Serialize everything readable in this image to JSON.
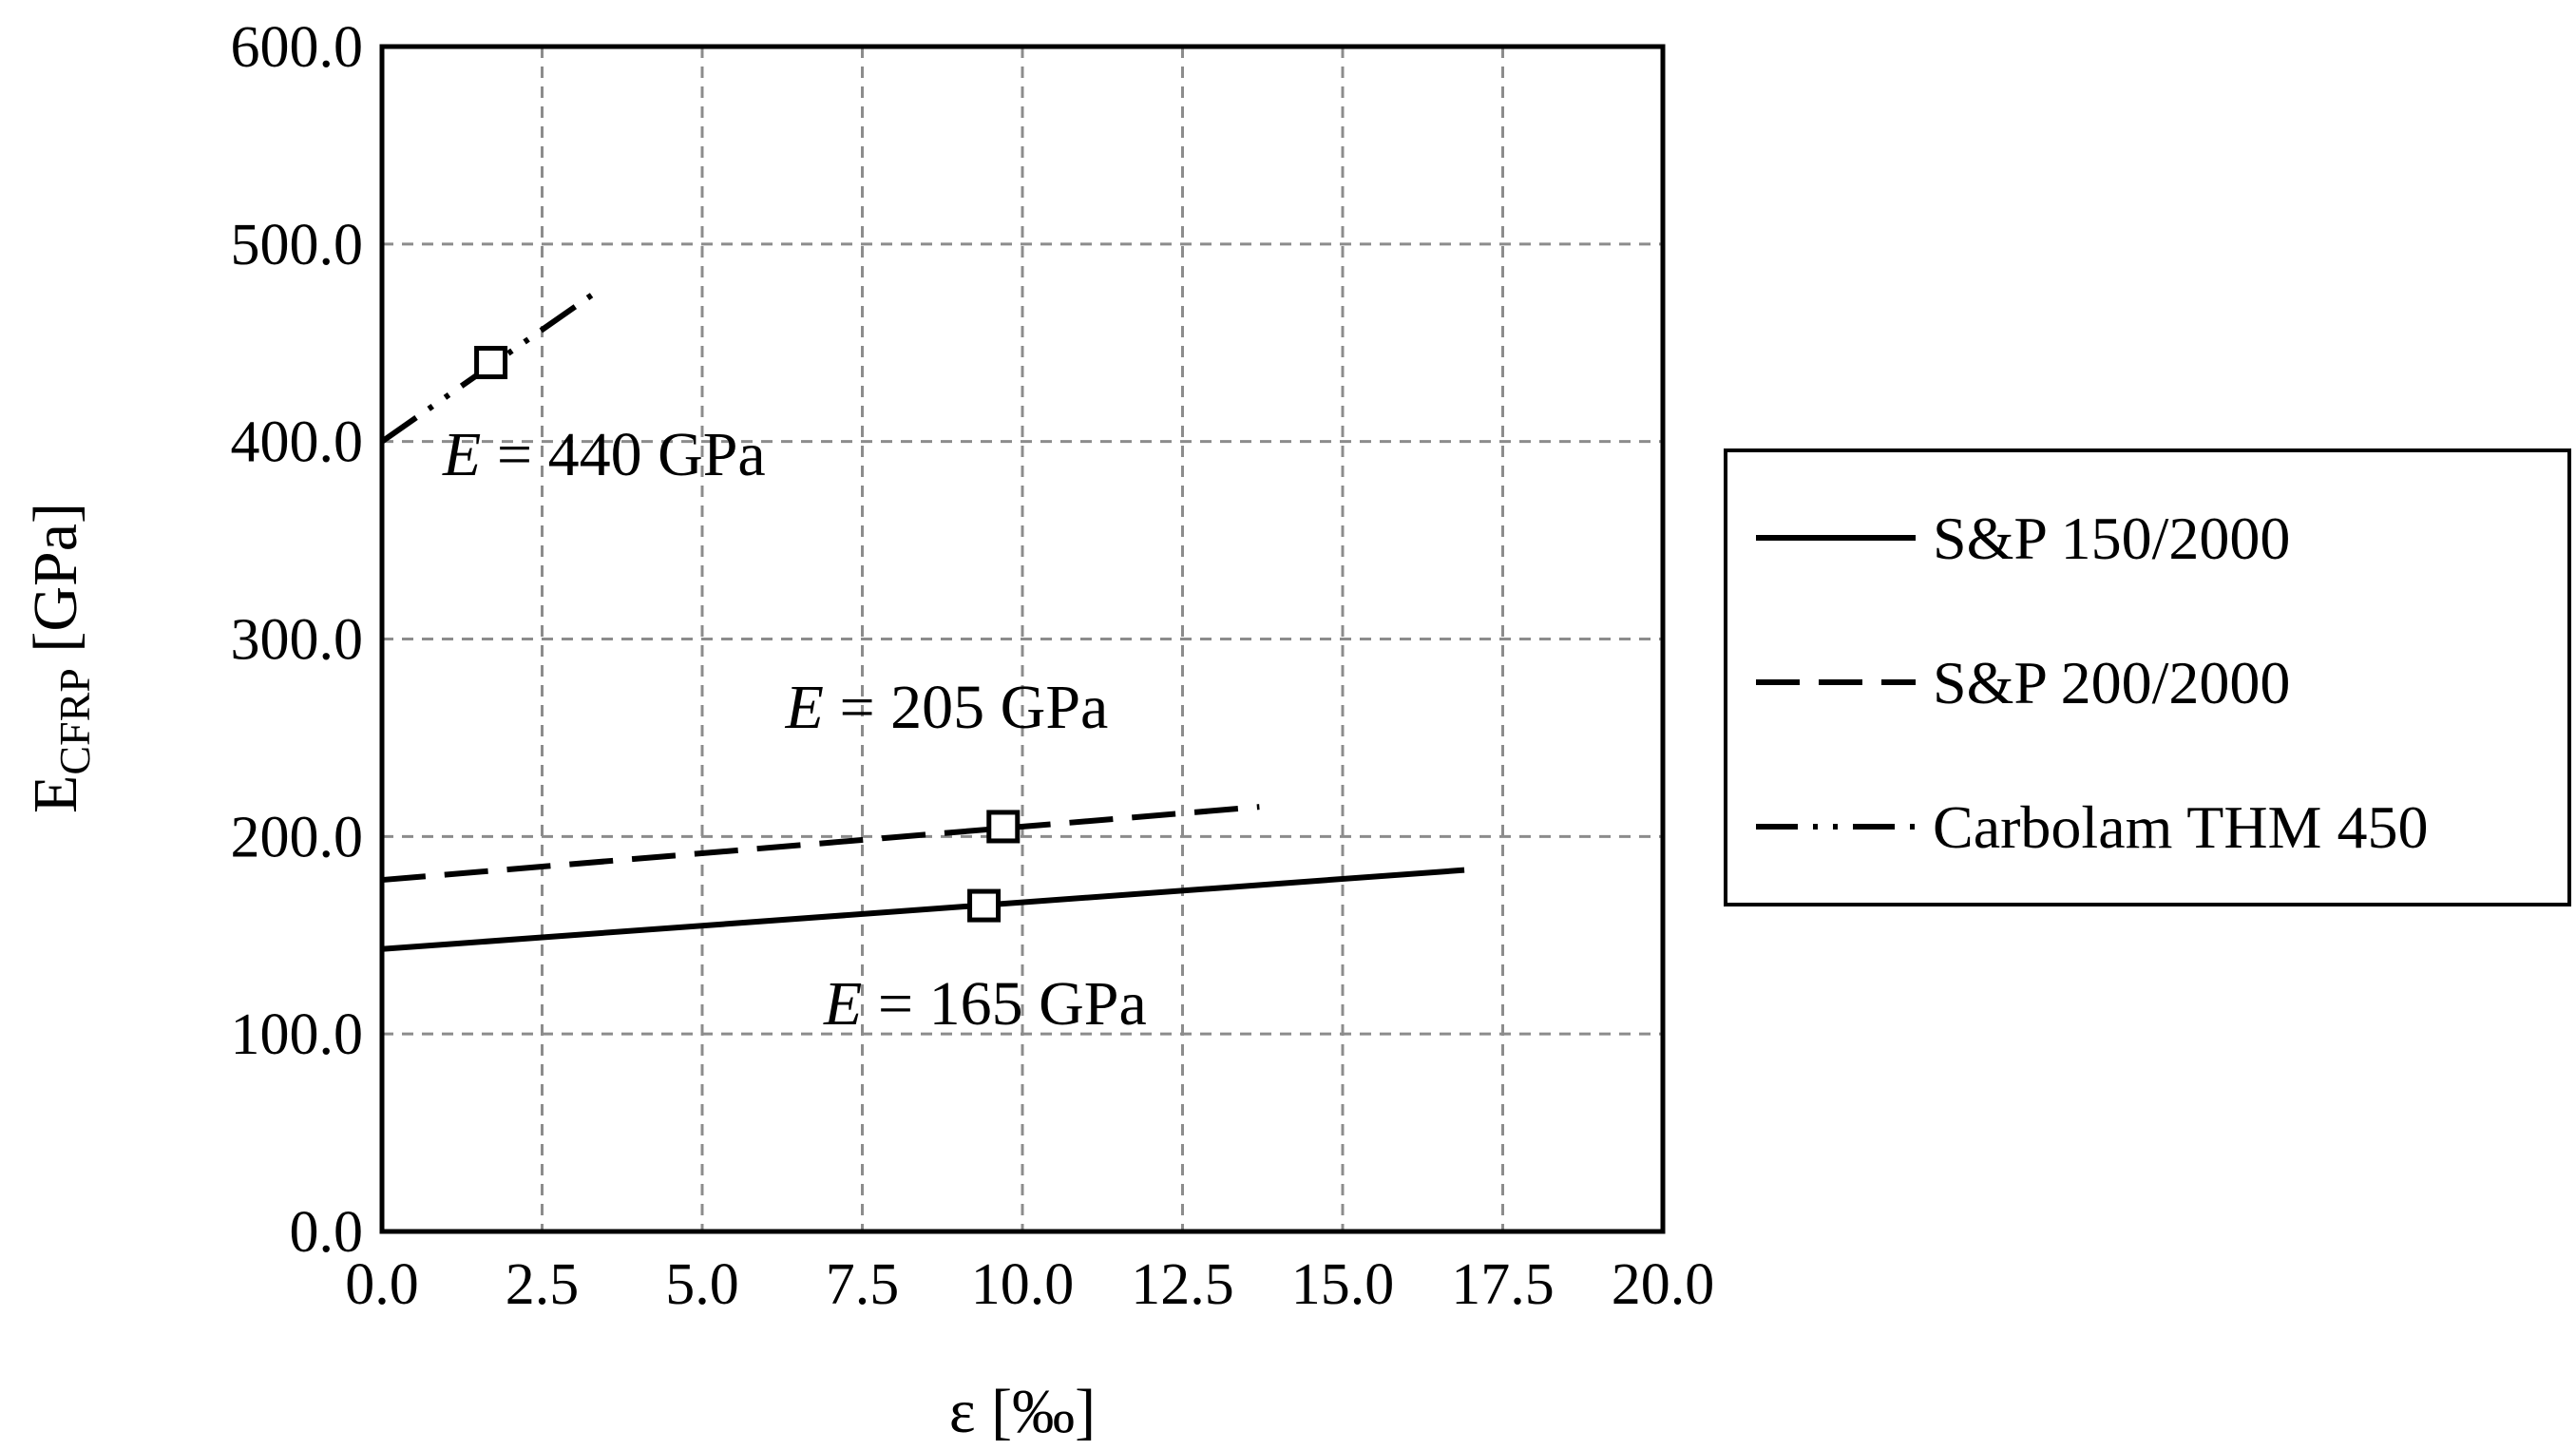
{
  "chart_data": {
    "type": "line",
    "title": "",
    "xlabel": "ε [‰]",
    "ylabel_main": "E",
    "ylabel_sub": "CFRP",
    "ylabel_unit": " [GPa]",
    "xlim": [
      0,
      20
    ],
    "ylim": [
      0,
      600
    ],
    "x_ticks": [
      0,
      2.5,
      5,
      7.5,
      10,
      12.5,
      15,
      17.5,
      20
    ],
    "x_tick_labels": [
      "0.0",
      "2.5",
      "5.0",
      "7.5",
      "10.0",
      "12.5",
      "15.0",
      "17.5",
      "20.0"
    ],
    "y_ticks": [
      0,
      100,
      200,
      300,
      400,
      500,
      600
    ],
    "y_tick_labels": [
      "0.0",
      "100.0",
      "200.0",
      "300.0",
      "400.0",
      "500.0",
      "600.0"
    ],
    "grid": true,
    "legend_position": "right",
    "series": [
      {
        "name": "S&P 150/2000",
        "style": "solid",
        "x": [
          0,
          16.9
        ],
        "y": [
          143,
          183
        ],
        "marker": {
          "x": 9.4,
          "y": 165
        },
        "annotation": {
          "label": "E",
          "text": " = 165 GPa",
          "x": 6.9,
          "y": 105
        }
      },
      {
        "name": "S&P 200/2000",
        "style": "dashed",
        "x": [
          0,
          13.7
        ],
        "y": [
          178,
          215
        ],
        "marker": {
          "x": 9.7,
          "y": 205
        },
        "annotation": {
          "label": "E",
          "text": " = 205 GPa",
          "x": 6.3,
          "y": 255
        }
      },
      {
        "name": "Carbolam THM 450",
        "style": "dash-dot-dot",
        "x": [
          0,
          3.4
        ],
        "y": [
          400,
          477
        ],
        "marker": {
          "x": 1.7,
          "y": 440
        },
        "annotation": {
          "label": "E",
          "text": " = 440 GPa",
          "x": 0.95,
          "y": 383
        }
      }
    ]
  }
}
